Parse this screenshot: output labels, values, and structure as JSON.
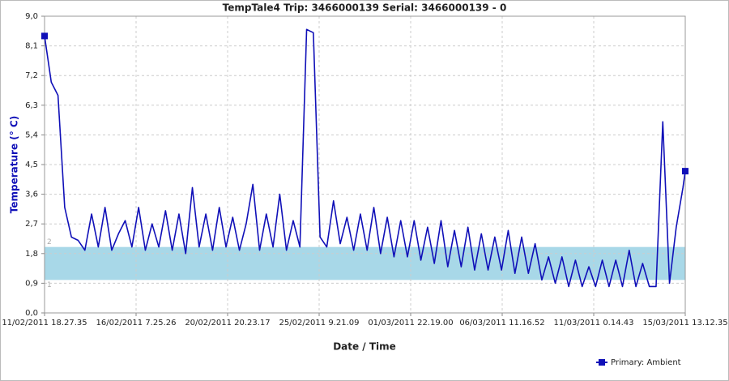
{
  "chart_data": {
    "type": "line",
    "title": "TempTale4    Trip: 3466000139    Serial: 3466000139 - 0",
    "xlabel": "Date / Time",
    "ylabel": "Temperature (° C)",
    "x": [
      "2011-02-11T18:27:35",
      "2011-02-12T02:27:35",
      "2011-02-12T10:27:35",
      "2011-02-12T18:27:35",
      "2011-02-13T02:27:35",
      "2011-02-13T10:27:35",
      "2011-02-13T18:27:35",
      "2011-02-14T02:27:35",
      "2011-02-14T10:27:35",
      "2011-02-14T18:27:35",
      "2011-02-15T02:27:35",
      "2011-02-15T10:27:35",
      "2011-02-15T18:27:35",
      "2011-02-16T02:27:35",
      "2011-02-16T10:27:35",
      "2011-02-16T18:27:35",
      "2011-02-17T02:27:35",
      "2011-02-17T10:27:35",
      "2011-02-17T18:27:35",
      "2011-02-18T02:27:35",
      "2011-02-18T10:27:35",
      "2011-02-18T18:27:35",
      "2011-02-19T02:27:35",
      "2011-02-19T10:27:35",
      "2011-02-19T18:27:35",
      "2011-02-20T02:27:35",
      "2011-02-20T10:27:35",
      "2011-02-20T18:27:35",
      "2011-02-21T02:27:35",
      "2011-02-21T10:27:35",
      "2011-02-21T18:27:35",
      "2011-02-22T02:27:35",
      "2011-02-22T10:27:35",
      "2011-02-22T18:27:35",
      "2011-02-23T02:27:35",
      "2011-02-23T10:27:35",
      "2011-02-23T18:27:35",
      "2011-02-24T02:27:35",
      "2011-02-24T10:27:35",
      "2011-02-24T18:27:35",
      "2011-02-25T02:27:35",
      "2011-02-25T10:27:35",
      "2011-02-25T18:27:35",
      "2011-02-26T02:27:35",
      "2011-02-26T10:27:35",
      "2011-02-26T18:27:35",
      "2011-02-27T02:27:35",
      "2011-02-27T10:27:35",
      "2011-02-27T18:27:35",
      "2011-02-28T02:27:35",
      "2011-02-28T10:27:35",
      "2011-02-28T18:27:35",
      "2011-03-01T02:27:35",
      "2011-03-01T10:27:35",
      "2011-03-01T18:27:35",
      "2011-03-02T02:27:35",
      "2011-03-02T10:27:35",
      "2011-03-02T18:27:35",
      "2011-03-03T02:27:35",
      "2011-03-03T10:27:35",
      "2011-03-03T18:27:35",
      "2011-03-04T02:27:35",
      "2011-03-04T10:27:35",
      "2011-03-04T18:27:35",
      "2011-03-05T02:27:35",
      "2011-03-05T10:27:35",
      "2011-03-05T18:27:35",
      "2011-03-06T02:27:35",
      "2011-03-06T10:27:35",
      "2011-03-06T18:27:35",
      "2011-03-07T02:27:35",
      "2011-03-07T10:27:35",
      "2011-03-07T18:27:35",
      "2011-03-08T02:27:35",
      "2011-03-08T10:27:35",
      "2011-03-08T18:27:35",
      "2011-03-09T02:27:35",
      "2011-03-09T10:27:35",
      "2011-03-09T18:27:35",
      "2011-03-10T02:27:35",
      "2011-03-10T10:27:35",
      "2011-03-10T18:27:35",
      "2011-03-11T02:27:35",
      "2011-03-11T10:27:35",
      "2011-03-11T18:27:35",
      "2011-03-12T02:27:35",
      "2011-03-12T10:27:35",
      "2011-03-12T18:27:35",
      "2011-03-13T02:27:35",
      "2011-03-13T10:27:35",
      "2011-03-13T18:27:35",
      "2011-03-14T02:27:35",
      "2011-03-14T10:27:35",
      "2011-03-14T18:27:35",
      "2011-03-15T02:27:35",
      "2011-03-15T10:27:35",
      "2011-03-15T13:12:35"
    ],
    "series": [
      {
        "name": "Primary: Ambient",
        "color": "#1010b8",
        "values": [
          8.4,
          7.0,
          6.6,
          3.2,
          2.3,
          2.2,
          1.9,
          3.0,
          2.0,
          3.2,
          1.9,
          2.4,
          2.8,
          2.0,
          3.2,
          1.9,
          2.7,
          2.0,
          3.1,
          1.9,
          3.0,
          1.8,
          3.8,
          2.0,
          3.0,
          1.9,
          3.2,
          2.0,
          2.9,
          1.9,
          2.7,
          3.9,
          1.9,
          3.0,
          2.0,
          3.6,
          1.9,
          2.8,
          2.0,
          8.6,
          8.5,
          2.3,
          2.0,
          3.4,
          2.1,
          2.9,
          1.9,
          3.0,
          1.9,
          3.2,
          1.8,
          2.9,
          1.7,
          2.8,
          1.7,
          2.8,
          1.6,
          2.6,
          1.5,
          2.8,
          1.4,
          2.5,
          1.4,
          2.6,
          1.3,
          2.4,
          1.3,
          2.3,
          1.3,
          2.5,
          1.2,
          2.3,
          1.2,
          2.1,
          1.0,
          1.7,
          0.9,
          1.7,
          0.8,
          1.6,
          0.8,
          1.4,
          0.8,
          1.6,
          0.8,
          1.6,
          0.8,
          1.9,
          0.8,
          1.5,
          0.8,
          0.8,
          5.8,
          0.9,
          2.6,
          3.8,
          4.3
        ]
      }
    ],
    "xlim": [
      "2011-02-11T18:27:35",
      "2011-03-15T13:12:35"
    ],
    "xticks": [
      {
        "value": "2011-02-11T18:27:35",
        "label": "11/02/2011 18.27.35"
      },
      {
        "value": "2011-02-16T07:25:26",
        "label": "16/02/2011 7.25.26"
      },
      {
        "value": "2011-02-20T20:23:17",
        "label": "20/02/2011 20.23.17"
      },
      {
        "value": "2011-02-25T09:21:09",
        "label": "25/02/2011 9.21.09"
      },
      {
        "value": "2011-03-01T22:19:00",
        "label": "01/03/2011 22.19.00"
      },
      {
        "value": "2011-03-06T11:16:52",
        "label": "06/03/2011 11.16.52"
      },
      {
        "value": "2011-03-11T00:14:43",
        "label": "11/03/2011 0.14.43"
      },
      {
        "value": "2011-03-15T13:12:35",
        "label": "15/03/2011 13.12.35"
      }
    ],
    "ylim": [
      0,
      9
    ],
    "yticks": [
      {
        "value": 0,
        "label": "0,0"
      },
      {
        "value": 0.9,
        "label": "0,9"
      },
      {
        "value": 1.8,
        "label": "1,8"
      },
      {
        "value": 2.7,
        "label": "2,7"
      },
      {
        "value": 3.6,
        "label": "3,6"
      },
      {
        "value": 4.5,
        "label": "4,5"
      },
      {
        "value": 5.4,
        "label": "5,4"
      },
      {
        "value": 6.3,
        "label": "6,3"
      },
      {
        "value": 7.2,
        "label": "7,2"
      },
      {
        "value": 8.1,
        "label": "8,1"
      },
      {
        "value": 9,
        "label": "9,0"
      }
    ],
    "band": {
      "low": 1,
      "high": 2,
      "color": "#a8d8e8"
    },
    "grid": true,
    "legend": "bottom-right"
  }
}
